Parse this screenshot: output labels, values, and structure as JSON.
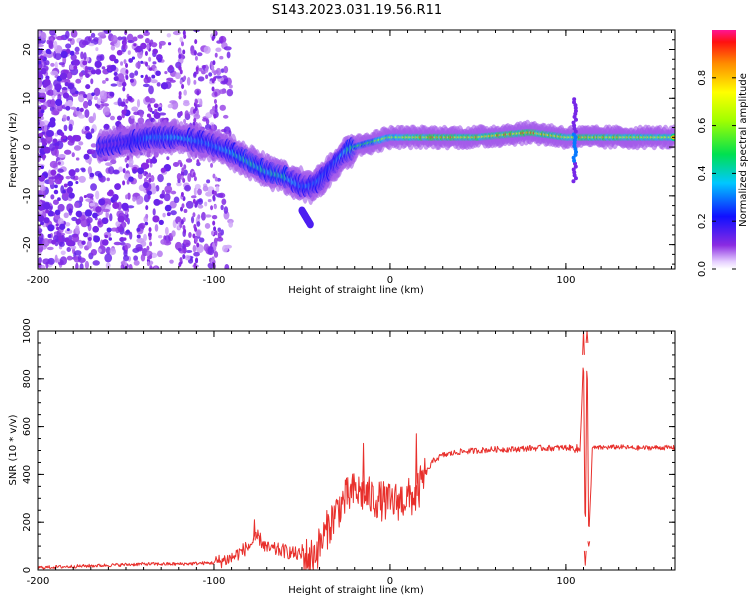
{
  "title": "S143.2023.031.19.56.R11",
  "colors": {
    "snr_line": "#e8302c",
    "spectrogram_low": "#7a1fe0",
    "spectrogram_high": "#ff1a1a"
  },
  "colorbar": {
    "label": "Normalized spectral amplitude",
    "ticks": [
      "0.0",
      "0.2",
      "0.4",
      "0.6",
      "0.8"
    ],
    "tick_values": [
      0,
      0.2,
      0.4,
      0.6,
      0.8
    ],
    "range": [
      0,
      1
    ]
  },
  "chart_data": [
    {
      "type": "heatmap",
      "title": "S143.2023.031.19.56.R11",
      "xlabel": "Height of straight line (km)",
      "ylabel": "Frequency (Hz)",
      "xlim": [
        -200,
        162
      ],
      "ylim": [
        -25,
        24
      ],
      "xticks": [
        -200,
        -100,
        0,
        100
      ],
      "yticks": [
        -20,
        -10,
        0,
        10,
        20
      ],
      "ridge": {
        "x": [
          -165,
          -150,
          -135,
          -120,
          -105,
          -90,
          -80,
          -70,
          -60,
          -50,
          -45,
          -40,
          -35,
          -30,
          -25,
          -20,
          -10,
          0,
          20,
          50,
          80,
          100,
          110,
          140,
          162
        ],
        "y": [
          0,
          1,
          2,
          2,
          1,
          -1,
          -3,
          -5,
          -6,
          -8,
          -8,
          -7,
          -5,
          -3,
          -1,
          0,
          1,
          2,
          2,
          2,
          3,
          2,
          2,
          2,
          2
        ],
        "amplitude": [
          0.1,
          0.15,
          0.3,
          0.35,
          0.3,
          0.35,
          0.4,
          0.4,
          0.4,
          0.3,
          0.3,
          0.3,
          0.25,
          0.3,
          0.4,
          0.45,
          0.55,
          0.65,
          0.8,
          0.8,
          0.85,
          0.75,
          0.8,
          0.75,
          0.7
        ]
      },
      "secondary_branch": {
        "x": [
          -50,
          -45
        ],
        "y": [
          -13,
          -16
        ]
      }
    },
    {
      "type": "line",
      "xlabel": "Height of straight line (km)",
      "ylabel": "SNR (10 * v/v)",
      "xlim": [
        -200,
        162
      ],
      "ylim": [
        0,
        1000
      ],
      "xticks": [
        -200,
        -100,
        0,
        100
      ],
      "yticks": [
        0,
        200,
        400,
        600,
        800,
        1000
      ],
      "series": [
        {
          "x": [
            -200,
            -180,
            -160,
            -140,
            -120,
            -100,
            -90,
            -80,
            -75,
            -70,
            -60,
            -50,
            -45,
            -40,
            -35,
            -30,
            -25,
            -20,
            -15,
            -10,
            -5,
            0,
            5,
            10,
            15,
            20,
            25,
            30,
            40,
            50,
            60,
            70,
            80,
            90,
            100,
            105,
            108,
            110,
            111,
            112,
            113,
            115,
            120,
            130,
            140,
            150,
            162
          ],
          "y": [
            10,
            15,
            20,
            25,
            25,
            30,
            50,
            100,
            140,
            90,
            80,
            60,
            50,
            100,
            180,
            250,
            300,
            330,
            320,
            300,
            290,
            280,
            290,
            300,
            310,
            400,
            460,
            480,
            495,
            500,
            505,
            505,
            510,
            510,
            512,
            510,
            500,
            900,
            80,
            950,
            120,
            510,
            512,
            515,
            510,
            512,
            512
          ],
          "spikes": [
            {
              "x": -77,
              "y": 210
            },
            {
              "x": -15,
              "y": 530
            },
            {
              "x": 15,
              "y": 570
            },
            {
              "x": 110,
              "y": 1000
            },
            {
              "x": 111,
              "y": 20
            },
            {
              "x": 112,
              "y": 1000
            },
            {
              "x": 113,
              "y": 100
            }
          ]
        }
      ]
    }
  ]
}
